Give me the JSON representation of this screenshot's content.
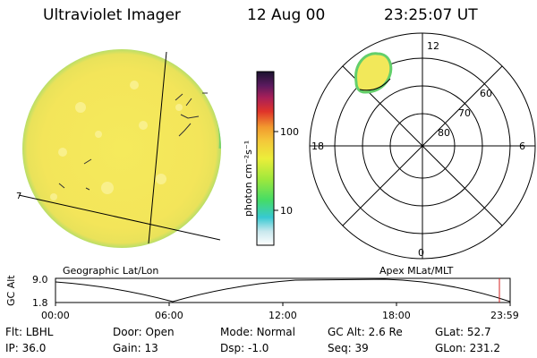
{
  "header": {
    "title": "Ultraviolet Imager",
    "date": "12 Aug 00",
    "time": "23:25:07 UT"
  },
  "colorbar": {
    "unit": "photon cm⁻²s⁻¹",
    "ticks": [
      "100",
      "10"
    ]
  },
  "polar": {
    "mlt_labels": [
      "12",
      "6",
      "0",
      "18"
    ],
    "lat_labels": [
      "60",
      "70",
      "80"
    ]
  },
  "image_labels": {
    "left": "Geographic Lat/Lon",
    "right": "Apex MLat/MLT"
  },
  "altitude_plot": {
    "ylabel": "GC Alt",
    "yticks": [
      "9.0",
      "1.8"
    ],
    "xticks": [
      "00:00",
      "06:00",
      "12:00",
      "18:00",
      "23:59"
    ]
  },
  "status": {
    "row1": [
      {
        "label": "Flt:",
        "value": "LBHL"
      },
      {
        "label": "Door:",
        "value": "Open"
      },
      {
        "label": "Mode:",
        "value": "Normal"
      },
      {
        "label": "GC Alt:",
        "value": "2.6 Re"
      },
      {
        "label": "GLat:",
        "value": "52.7"
      }
    ],
    "row2": [
      {
        "label": "IP:",
        "value": "36.0"
      },
      {
        "label": "Gain:",
        "value": "13"
      },
      {
        "label": "Dsp:",
        "value": "-1.0"
      },
      {
        "label": "Seq:",
        "value": "39"
      },
      {
        "label": "GLon:",
        "value": "231.2"
      }
    ]
  },
  "colors": {
    "disk_fill": "#f2e85a",
    "disk_edge": "#7cd36c",
    "marker": "#d42020"
  }
}
